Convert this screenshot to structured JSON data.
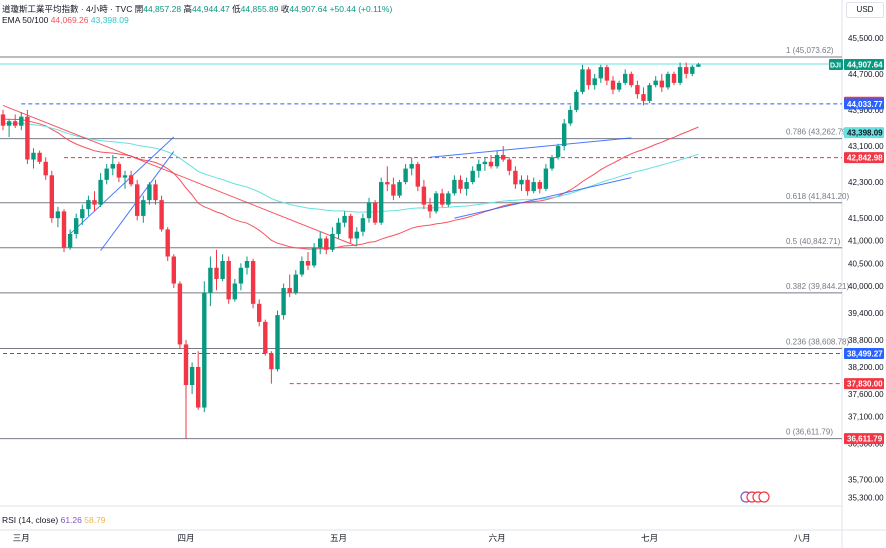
{
  "header": {
    "symbol_line": "道瓊斯工業平均指數 · 4小時 · TVC",
    "open_label": "開",
    "open": "44,857.28",
    "high_label": "高",
    "high": "44,944.47",
    "low_label": "低",
    "low": "44,855.89",
    "close_label": "收",
    "close": "44,907.64",
    "change": "+50.44 (+0.11%)",
    "ema_label": "EMA 50/100",
    "ema50": "44,069.26",
    "ema100": "43,398.09",
    "currency": "USD"
  },
  "colors": {
    "up": "#089981",
    "down": "#f23645",
    "ema50": "#f7525f",
    "ema100": "#67e0e0",
    "trend": "#2962ff",
    "fib": "#787b86",
    "blue_dash": "#2962ff",
    "red_dash": "#f23645"
  },
  "rsi": {
    "label": "RSI (14, close)",
    "v1": "61.26",
    "v2": "58.79"
  },
  "chart_data": {
    "type": "candlestick",
    "ylim": [
      35250,
      45850
    ],
    "yticks": [
      {
        "v": 45500,
        "label": "45,500.00"
      },
      {
        "v": 44700,
        "label": "44,700.00"
      },
      {
        "v": 43900,
        "label": "43,900.00"
      },
      {
        "v": 43100,
        "label": "43,100.00"
      },
      {
        "v": 42300,
        "label": "42,300.00"
      },
      {
        "v": 41500,
        "label": "41,500.00"
      },
      {
        "v": 41000,
        "label": "41,000.00"
      },
      {
        "v": 40500,
        "label": "40,500.00"
      },
      {
        "v": 40000,
        "label": "40,000.00"
      },
      {
        "v": 39400,
        "label": "39,400.00"
      },
      {
        "v": 38800,
        "label": "38,800.00"
      },
      {
        "v": 38200,
        "label": "38,200.00"
      },
      {
        "v": 37600,
        "label": "37,600.00"
      },
      {
        "v": 37100,
        "label": "37,100.00"
      },
      {
        "v": 36500,
        "label": "36,500.00"
      },
      {
        "v": 35700,
        "label": "35,700.00"
      },
      {
        "v": 35300,
        "label": "35,300.00"
      }
    ],
    "month_labels": [
      {
        "label": "三月",
        "i": 3
      },
      {
        "label": "四月",
        "i": 30
      },
      {
        "label": "五月",
        "i": 55
      },
      {
        "label": "六月",
        "i": 81
      },
      {
        "label": "七月",
        "i": 106
      },
      {
        "label": "八月",
        "i": 131
      }
    ],
    "fib_levels": [
      {
        "label": "1 (45,073.62)",
        "v": 45073.62
      },
      {
        "label": "0.786 (43,262.79)",
        "v": 43262.79
      },
      {
        "label": "0.618 (41,841.20)",
        "v": 41841.2
      },
      {
        "label": "0.5 (40,842.71)",
        "v": 40842.71
      },
      {
        "label": "0.382 (39,844.21)",
        "v": 39844.21
      },
      {
        "label": "0.236 (38,608.78)",
        "v": 38608.78
      },
      {
        "label": "0 (36,611.79)",
        "v": 36611.79
      }
    ],
    "price_tags": [
      {
        "label": "DJI",
        "value": "44,907.64",
        "v": 44907.64,
        "kind": "last"
      },
      {
        "value": "44,069.26",
        "v": 44069.26,
        "kind": "red"
      },
      {
        "value": "44,033.77",
        "v": 44033.77,
        "kind": "blue"
      },
      {
        "value": "43,398.09",
        "v": 43398.09,
        "kind": "cyan"
      },
      {
        "value": "42,842.98",
        "v": 42842.98,
        "kind": "red"
      },
      {
        "value": "38,499.27",
        "v": 38499.27,
        "kind": "blue"
      },
      {
        "value": "37,830.00",
        "v": 37830.0,
        "kind": "red"
      },
      {
        "value": "36,611.79",
        "v": 36611.79,
        "kind": "red"
      }
    ],
    "dashed_levels": [
      {
        "v": 44033.77,
        "color": "blue",
        "from": 3
      },
      {
        "v": 42842.98,
        "color": "red",
        "from": 10
      },
      {
        "v": 38499.27,
        "color": "blue",
        "from": 0
      },
      {
        "v": 37830.0,
        "color": "red",
        "from": 47
      }
    ],
    "horizontal_solid": [
      {
        "v": 44920,
        "color": "cyan"
      }
    ],
    "trendlines": [
      {
        "a": [
          11,
          41150
        ],
        "b": [
          28,
          43300
        ]
      },
      {
        "a": [
          16,
          40780
        ],
        "b": [
          28,
          42980
        ]
      },
      {
        "a": [
          70,
          42850
        ],
        "b": [
          103,
          43280
        ]
      },
      {
        "a": [
          74,
          41500
        ],
        "b": [
          103,
          42400
        ]
      },
      {
        "a": [
          0,
          44000
        ],
        "b": [
          58,
          40880
        ],
        "color": "down"
      }
    ],
    "candles": [
      [
        43800,
        43900,
        43450,
        43550
      ],
      [
        43550,
        43700,
        43300,
        43650
      ],
      [
        43650,
        43800,
        43500,
        43550
      ],
      [
        43550,
        43850,
        43450,
        43750
      ],
      [
        43750,
        43900,
        42700,
        42800
      ],
      [
        42800,
        43050,
        42600,
        42950
      ],
      [
        42950,
        43000,
        42700,
        42750
      ],
      [
        42750,
        42850,
        42350,
        42450
      ],
      [
        42450,
        42550,
        41400,
        41500
      ],
      [
        41500,
        41750,
        41300,
        41650
      ],
      [
        41650,
        41700,
        40750,
        40850
      ],
      [
        40850,
        41250,
        40800,
        41150
      ],
      [
        41150,
        41600,
        41050,
        41500
      ],
      [
        41500,
        41800,
        41350,
        41700
      ],
      [
        41700,
        42000,
        41550,
        41900
      ],
      [
        41900,
        42100,
        41650,
        41800
      ],
      [
        41800,
        42500,
        41750,
        42350
      ],
      [
        42350,
        42700,
        42250,
        42600
      ],
      [
        42600,
        42900,
        42450,
        42700
      ],
      [
        42700,
        42750,
        42300,
        42400
      ],
      [
        42400,
        42550,
        42150,
        42450
      ],
      [
        42450,
        42550,
        42200,
        42250
      ],
      [
        42250,
        42350,
        41450,
        41550
      ],
      [
        41550,
        42000,
        41400,
        41900
      ],
      [
        41900,
        42300,
        41800,
        42250
      ],
      [
        42250,
        42350,
        41800,
        41900
      ],
      [
        41900,
        42000,
        41200,
        41250
      ],
      [
        41250,
        41300,
        40550,
        40650
      ],
      [
        40650,
        40700,
        39950,
        40050
      ],
      [
        40050,
        40100,
        38600,
        38700
      ],
      [
        38700,
        38800,
        36611,
        37800
      ],
      [
        37800,
        38300,
        37600,
        38200
      ],
      [
        38200,
        38550,
        37250,
        37300
      ],
      [
        37300,
        40100,
        37200,
        39850
      ],
      [
        39850,
        40650,
        39550,
        40400
      ],
      [
        40400,
        40800,
        39900,
        40150
      ],
      [
        40150,
        40700,
        40100,
        40550
      ],
      [
        40550,
        40650,
        39600,
        39700
      ],
      [
        39700,
        40150,
        39650,
        40050
      ],
      [
        40050,
        40500,
        39900,
        40400
      ],
      [
        40400,
        40650,
        40250,
        40550
      ],
      [
        40550,
        40600,
        39500,
        39600
      ],
      [
        39600,
        39700,
        39100,
        39200
      ],
      [
        39200,
        39250,
        38450,
        38500
      ],
      [
        38500,
        38550,
        37830,
        38150
      ],
      [
        38150,
        39450,
        38100,
        39350
      ],
      [
        39350,
        40050,
        39250,
        39950
      ],
      [
        39950,
        40250,
        39750,
        39850
      ],
      [
        39850,
        40350,
        39800,
        40250
      ],
      [
        40250,
        40650,
        40200,
        40550
      ],
      [
        40550,
        40750,
        40350,
        40450
      ],
      [
        40450,
        40950,
        40400,
        40850
      ],
      [
        40850,
        41200,
        40700,
        41050
      ],
      [
        41050,
        41100,
        40700,
        40800
      ],
      [
        40800,
        41300,
        40750,
        41150
      ],
      [
        41150,
        41500,
        41050,
        41400
      ],
      [
        41400,
        41650,
        41300,
        41550
      ],
      [
        41550,
        41600,
        40950,
        41050
      ],
      [
        41050,
        41300,
        40900,
        41200
      ],
      [
        41200,
        41600,
        41100,
        41500
      ],
      [
        41500,
        41950,
        41400,
        41850
      ],
      [
        41850,
        41900,
        41350,
        41400
      ],
      [
        41400,
        42400,
        41350,
        42300
      ],
      [
        42300,
        42650,
        42100,
        42250
      ],
      [
        42250,
        42400,
        41900,
        42000
      ],
      [
        42000,
        42350,
        41950,
        42300
      ],
      [
        42300,
        42700,
        42250,
        42600
      ],
      [
        42600,
        42850,
        42450,
        42700
      ],
      [
        42700,
        42750,
        42100,
        42200
      ],
      [
        42200,
        42350,
        41700,
        41800
      ],
      [
        41800,
        41950,
        41500,
        41650
      ],
      [
        41650,
        42100,
        41600,
        42050
      ],
      [
        42050,
        42150,
        41750,
        41800
      ],
      [
        41800,
        42100,
        41750,
        42050
      ],
      [
        42050,
        42450,
        42000,
        42350
      ],
      [
        42350,
        42450,
        42050,
        42150
      ],
      [
        42150,
        42400,
        42000,
        42300
      ],
      [
        42300,
        42650,
        42250,
        42550
      ],
      [
        42550,
        42800,
        42400,
        42700
      ],
      [
        42700,
        42850,
        42550,
        42750
      ],
      [
        42750,
        42900,
        42600,
        42650
      ],
      [
        42650,
        43000,
        42600,
        42900
      ],
      [
        42900,
        43100,
        42750,
        42800
      ],
      [
        42800,
        42850,
        42450,
        42550
      ],
      [
        42550,
        42650,
        42150,
        42250
      ],
      [
        42250,
        42450,
        42100,
        42350
      ],
      [
        42350,
        42450,
        42000,
        42100
      ],
      [
        42100,
        42400,
        42050,
        42300
      ],
      [
        42300,
        42350,
        42050,
        42150
      ],
      [
        42150,
        42700,
        42100,
        42600
      ],
      [
        42600,
        42900,
        42550,
        42850
      ],
      [
        42850,
        43150,
        42800,
        43100
      ],
      [
        43100,
        43700,
        43000,
        43600
      ],
      [
        43600,
        44000,
        43550,
        43900
      ],
      [
        43900,
        44350,
        43850,
        44300
      ],
      [
        44300,
        44900,
        44250,
        44800
      ],
      [
        44800,
        44850,
        44350,
        44450
      ],
      [
        44450,
        44700,
        44350,
        44600
      ],
      [
        44600,
        44900,
        44500,
        44850
      ],
      [
        44850,
        44900,
        44450,
        44550
      ],
      [
        44550,
        44650,
        44250,
        44350
      ],
      [
        44350,
        44550,
        44300,
        44500
      ],
      [
        44500,
        44800,
        44450,
        44700
      ],
      [
        44700,
        44750,
        44400,
        44450
      ],
      [
        44450,
        44550,
        44150,
        44250
      ],
      [
        44250,
        44400,
        44000,
        44100
      ],
      [
        44100,
        44500,
        44050,
        44450
      ],
      [
        44450,
        44650,
        44400,
        44550
      ],
      [
        44550,
        44700,
        44300,
        44400
      ],
      [
        44400,
        44750,
        44350,
        44700
      ],
      [
        44700,
        44750,
        44450,
        44500
      ],
      [
        44500,
        44950,
        44450,
        44850
      ],
      [
        44850,
        44950,
        44600,
        44700
      ],
      [
        44700,
        44900,
        44650,
        44857
      ],
      [
        44857,
        44944,
        44855,
        44907
      ]
    ]
  }
}
